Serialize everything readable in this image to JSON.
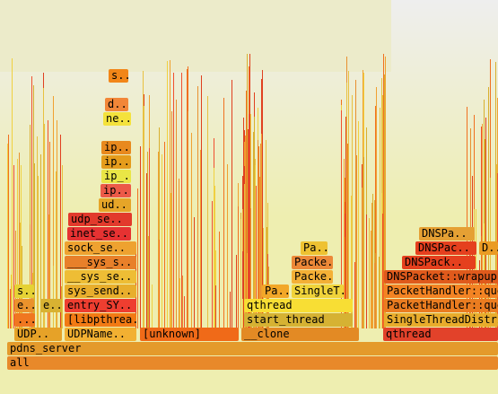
{
  "frames": [
    {
      "label": "all",
      "color": "#e8892a"
    },
    {
      "label": "pdns_server",
      "color": "#e49a2b"
    },
    {
      "label": "UDP..",
      "color": "#e6a228"
    },
    {
      "label": "UDPName..",
      "color": "#f2b032"
    },
    {
      "label": "[unknown]",
      "color": "#f06a18"
    },
    {
      "label": "__clone",
      "color": "#e38a24"
    },
    {
      "label": "qthread",
      "color": "#e2422a"
    },
    {
      "label": "[libpthrea..",
      "color": "#f27a14"
    },
    {
      "label": "start_thread",
      "color": "#d6b233"
    },
    {
      "label": "SingleThreadDistributor::..",
      "color": "#e8ac2c"
    },
    {
      "label": "...",
      "color": "#f07720"
    },
    {
      "label": "entry_SY..",
      "color": "#ee3e30"
    },
    {
      "label": "qthread",
      "color": "#f8de34"
    },
    {
      "label": "PacketHandler::question",
      "color": "#ea7c20"
    },
    {
      "label": "e..",
      "color": "#ea922c"
    },
    {
      "label": "e..",
      "color": "#d8b232"
    },
    {
      "label": "sys_send..",
      "color": "#e8ae2c"
    },
    {
      "label": "Pa..",
      "color": "#f2a728"
    },
    {
      "label": "SingleT..",
      "color": "#f0d33a"
    },
    {
      "label": "PacketHandler::question",
      "color": "#f38323"
    },
    {
      "label": "s..",
      "color": "#e5d235"
    },
    {
      "label": "__sys_se..",
      "color": "#eebd35"
    },
    {
      "label": "Packe..",
      "color": "#f4b036"
    },
    {
      "label": "DNSPacket::wrapup",
      "color": "#e05a1c"
    },
    {
      "label": "___sys_s..",
      "color": "#e8802a"
    },
    {
      "label": "Packe..",
      "color": "#ec8838"
    },
    {
      "label": "DNSPack..",
      "color": "#e5401e"
    },
    {
      "label": "sock_se..",
      "color": "#eea230"
    },
    {
      "label": "Pa..",
      "color": "#eec232"
    },
    {
      "label": "DNSPac..",
      "color": "#e5401e"
    },
    {
      "label": "D..",
      "color": "#ea9b24"
    },
    {
      "label": "inet_se..",
      "color": "#e63232"
    },
    {
      "label": "DNSPa..",
      "color": "#e5a034"
    },
    {
      "label": "udp_se..",
      "color": "#e23a2c"
    },
    {
      "label": "ud..",
      "color": "#e6a528"
    },
    {
      "label": "ip..",
      "color": "#ec5a48"
    },
    {
      "label": "ip_..",
      "color": "#e9e646"
    },
    {
      "label": "ip..",
      "color": "#e59c1c"
    },
    {
      "label": "ip..",
      "color": "#e8891e"
    },
    {
      "label": "ne..",
      "color": "#f4e23c"
    },
    {
      "label": "d..",
      "color": "#f28638"
    },
    {
      "label": "s..",
      "color": "#f28618"
    }
  ]
}
